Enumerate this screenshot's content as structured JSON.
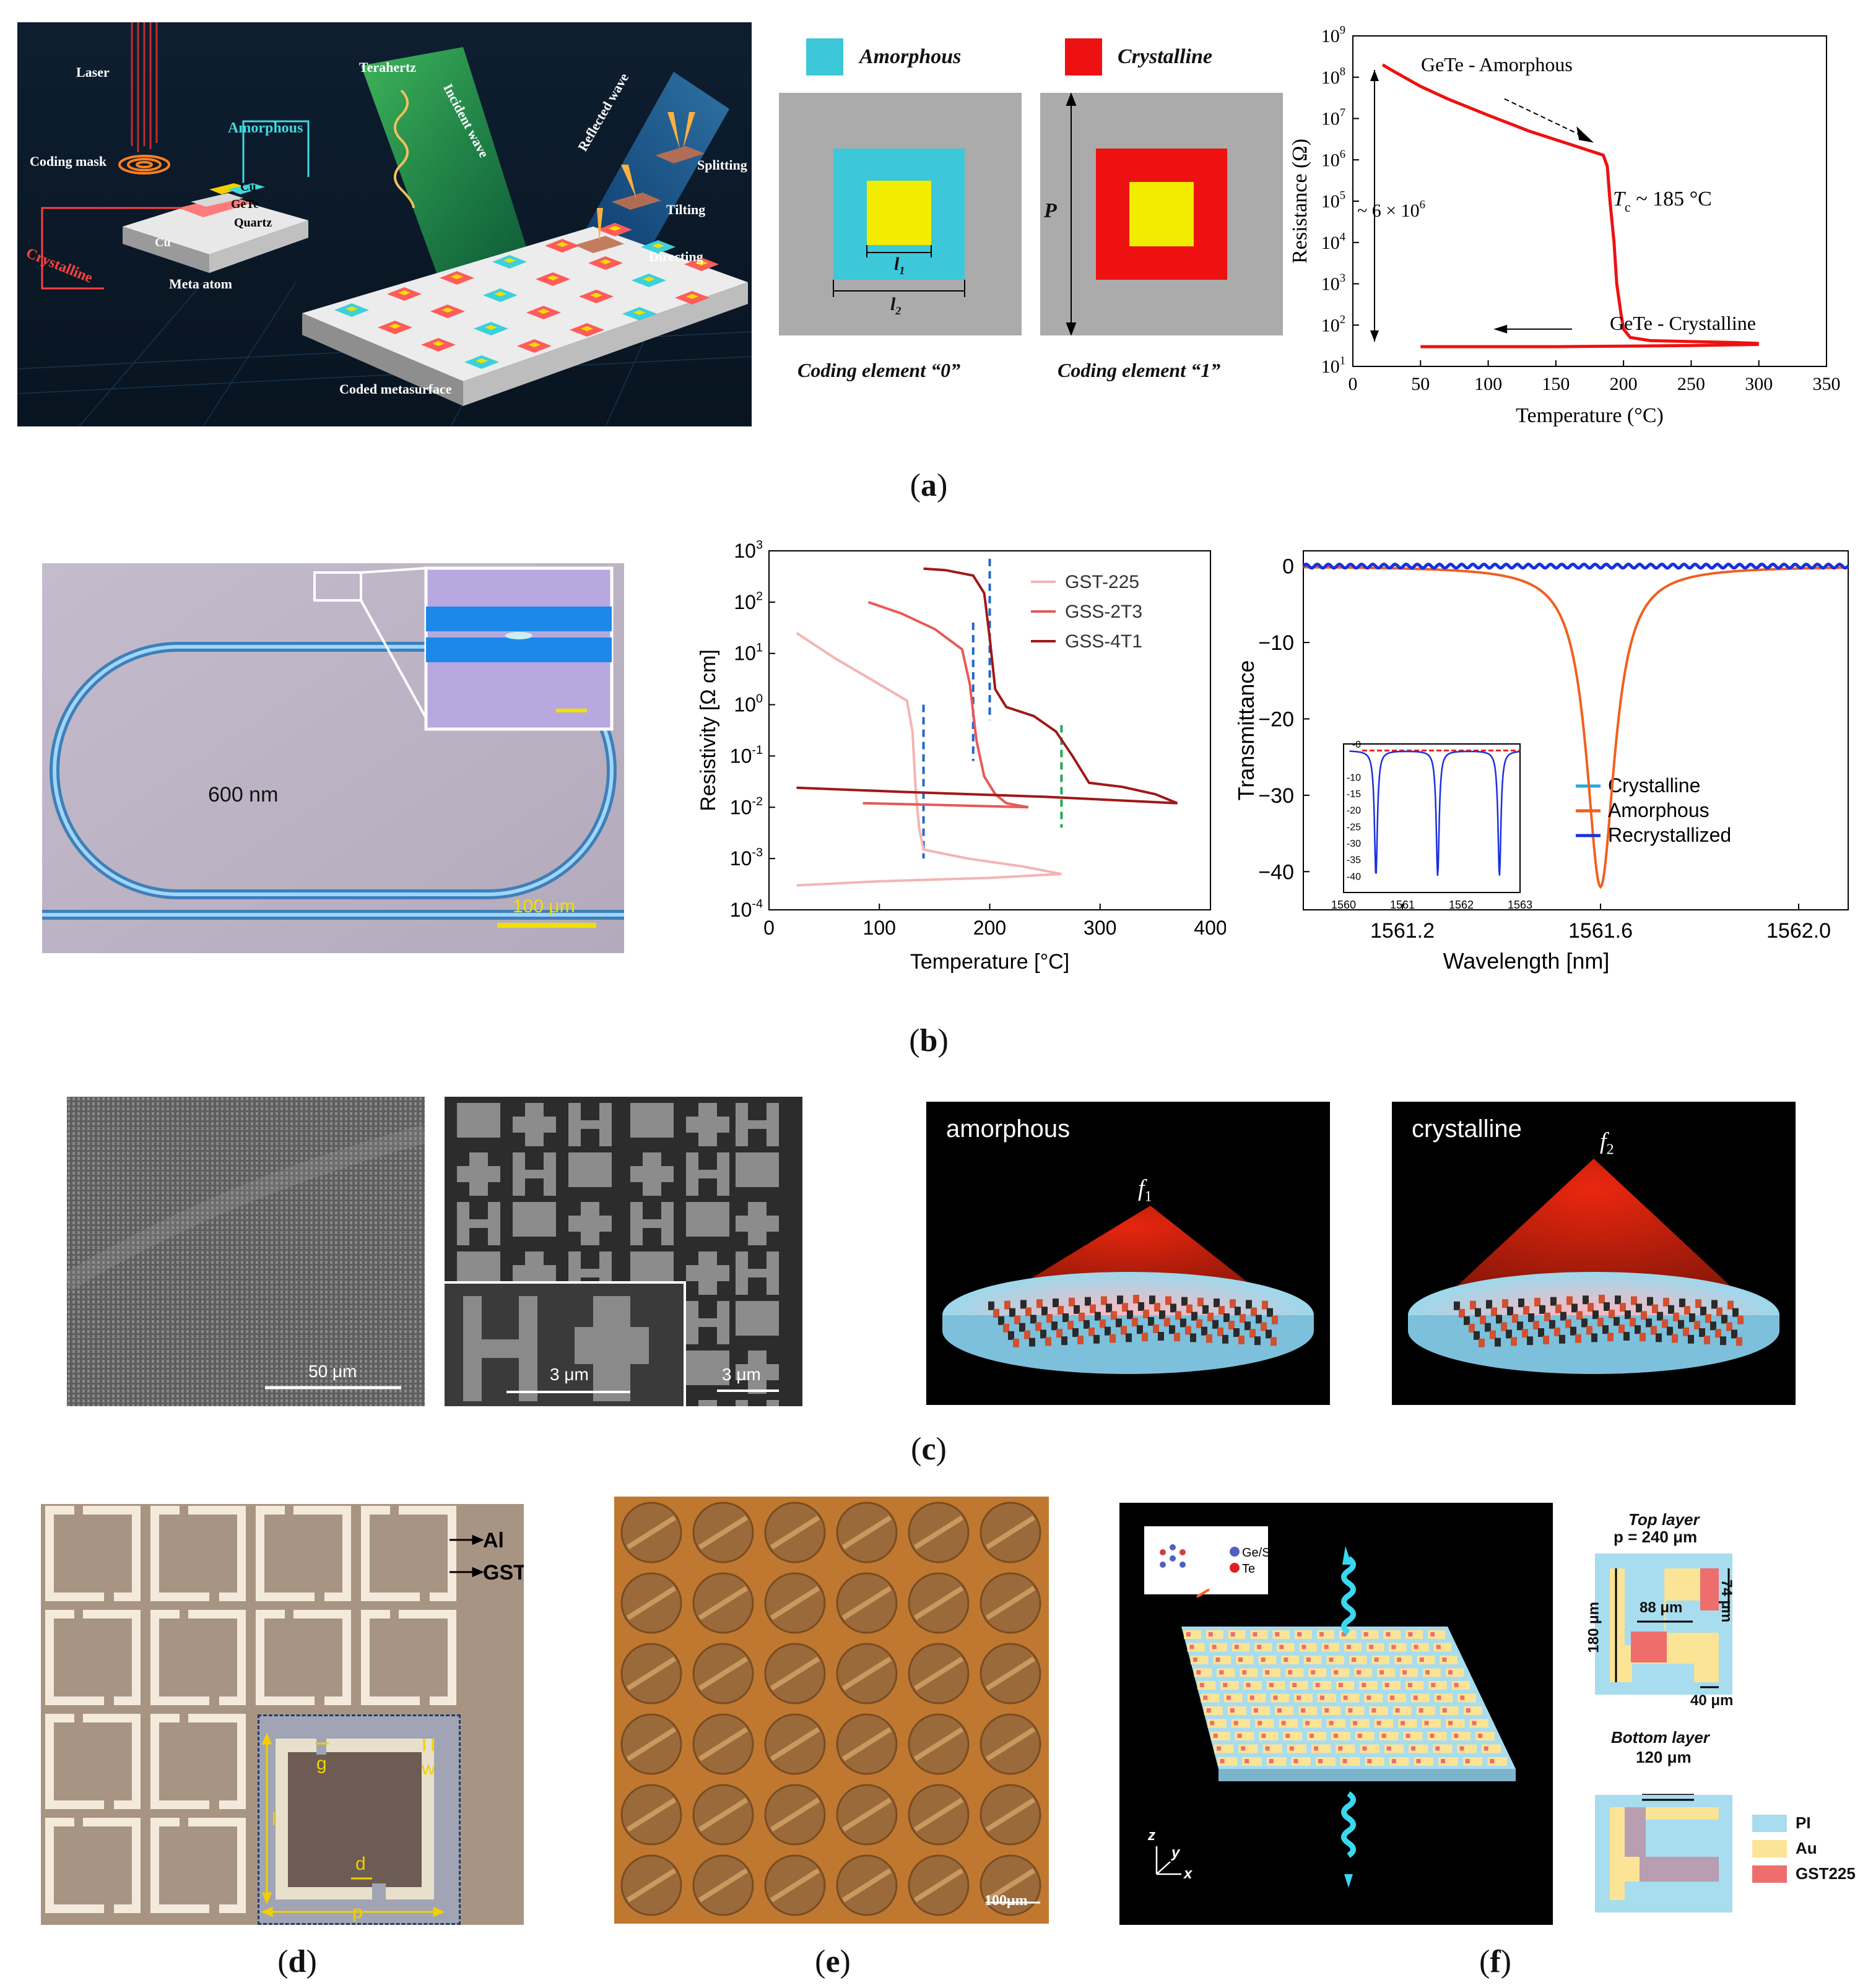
{
  "captions": {
    "a": "a",
    "b": "b",
    "c": "c",
    "d": "d",
    "e": "e",
    "f": "f"
  },
  "a1": {
    "laser": "Laser",
    "coding_mask": "Coding mask",
    "amorphous": "Amorphous",
    "crystalline": "Crystalline",
    "cu_top": "Cu",
    "gete": "GeTe",
    "quartz": "Quartz",
    "cu_left": "Cu",
    "meta_atom": "Meta atom",
    "terahertz": "Terahertz",
    "incident_wave": "Incident wave",
    "reflected_wave": "Reflected wave",
    "splitting": "Splitting",
    "tilting": "Tilting",
    "directing": "Directing",
    "coded_metasurface": "Coded metasurface"
  },
  "a2": {
    "legend_amorphous": "Amorphous",
    "legend_crystalline": "Crystalline",
    "l1": "l",
    "l1_sub": "1",
    "l2": "l",
    "l2_sub": "2",
    "p": "P",
    "coding0": "Coding element  “0”",
    "coding1": "Coding element  “1”",
    "colors": {
      "gray": "#ababab",
      "cyan": "#3cc8d8",
      "red": "#ee1111",
      "yellow": "#f1ec00"
    }
  },
  "chart_a3": {
    "type": "line",
    "ylabel": "Resistance (Ω)",
    "xlabel": "Temperature (°C)",
    "xlim": [
      0,
      350
    ],
    "ylim_log10": [
      1,
      9
    ],
    "x_ticks": [
      "0",
      "50",
      "100",
      "150",
      "200",
      "250",
      "300",
      "350"
    ],
    "y_ticks": [
      "10",
      "10",
      "10",
      "10",
      "10",
      "10",
      "10",
      "10",
      "10"
    ],
    "y_exps": [
      "1",
      "2",
      "3",
      "4",
      "5",
      "6",
      "7",
      "8",
      "9"
    ],
    "annotations": {
      "amorphous": "GeTe - Amorphous",
      "crystalline": "GeTe - Crystalline",
      "tc": "T",
      "tc_sub": "c",
      "tc_val": " ~ 185 °C",
      "ratio": "~ 6 × 10",
      "ratio_exp": "6"
    },
    "series": [
      {
        "name": "heating",
        "x": [
          22,
          30,
          50,
          70,
          100,
          130,
          160,
          185,
          188,
          190,
          193,
          195,
          198,
          200,
          205,
          220,
          250,
          280,
          300
        ],
        "y": [
          200000000,
          140000000,
          60000000,
          30000000,
          12000000,
          5000000,
          2400000,
          1300000,
          700000,
          100000,
          10000,
          1000,
          200,
          80,
          50,
          42,
          40,
          38,
          36
        ]
      },
      {
        "name": "cooling",
        "x": [
          300,
          250,
          200,
          150,
          100,
          50
        ],
        "y": [
          34,
          32,
          31,
          30,
          30,
          30
        ]
      }
    ]
  },
  "b1": {
    "label": "600 nm",
    "scale": "100 μm"
  },
  "chart_b2": {
    "type": "line",
    "ylabel": "Resistivity [Ω cm]",
    "xlabel": "Temperature [°C]",
    "xlim": [
      0,
      400
    ],
    "ylim_log10": [
      -4,
      3
    ],
    "x_ticks": [
      "0",
      "100",
      "200",
      "300",
      "400"
    ],
    "y_ticks": [
      "10",
      "10",
      "10",
      "10",
      "10",
      "10",
      "10",
      "10"
    ],
    "y_exps": [
      "-4",
      "-3",
      "-2",
      "-1",
      "0",
      "1",
      "2",
      "3"
    ],
    "colors": [
      "#f4b4b4",
      "#e85858",
      "#a01818"
    ],
    "series": [
      {
        "name": "GST-225",
        "heat_x": [
          25,
          60,
          100,
          125,
          130,
          133,
          136,
          140,
          180,
          230,
          265
        ],
        "heat_y": [
          25,
          8,
          2.5,
          1.2,
          0.3,
          0.02,
          0.004,
          0.0015,
          0.001,
          0.0007,
          0.0005
        ],
        "cool_x": [
          265,
          200,
          100,
          25
        ],
        "cool_y": [
          0.0005,
          0.00042,
          0.00036,
          0.0003
        ]
      },
      {
        "name": "GSS-2T3",
        "heat_x": [
          90,
          120,
          150,
          175,
          182,
          188,
          195,
          205,
          215,
          235
        ],
        "heat_y": [
          100,
          60,
          30,
          12,
          2.5,
          0.2,
          0.04,
          0.018,
          0.012,
          0.01
        ],
        "cool_x": [
          235,
          160,
          85
        ],
        "cool_y": [
          0.01,
          0.011,
          0.012
        ]
      },
      {
        "name": "GSS-4T1",
        "heat_x": [
          140,
          160,
          185,
          195,
          200,
          205,
          215,
          240,
          260,
          275,
          290,
          320,
          350,
          370
        ],
        "heat_y": [
          450,
          420,
          330,
          150,
          20,
          2,
          0.9,
          0.6,
          0.3,
          0.1,
          0.03,
          0.025,
          0.018,
          0.012
        ],
        "cool_x": [
          370,
          250,
          120,
          25
        ],
        "cool_y": [
          0.012,
          0.016,
          0.02,
          0.024
        ]
      }
    ],
    "vlines": [
      {
        "x": 140,
        "y_top": 1,
        "y_bottom": 0.001,
        "color": "#2266cc"
      },
      {
        "x": 185,
        "y_top": 40,
        "y_bottom": 0.08,
        "color": "#2266cc"
      },
      {
        "x": 200,
        "y_top": 700,
        "y_bottom": 0.5,
        "color": "#2266cc"
      },
      {
        "x": 265,
        "y_top": 0.4,
        "y_bottom": 0.004,
        "color": "#22aa55"
      }
    ]
  },
  "chart_b3": {
    "type": "line",
    "ylabel": "Transmittance",
    "xlabel": "Wavelength [nm]",
    "xlim": [
      1561.0,
      1562.1
    ],
    "ylim": [
      -45,
      2
    ],
    "x_ticks": [
      1561.2,
      1561.6,
      1562.0
    ],
    "x_tick_labels": [
      "1561.2",
      "1561.6",
      "1562.0"
    ],
    "y_ticks": [
      0,
      -10,
      -20,
      -30,
      -40
    ],
    "y_tick_labels": [
      "0",
      "−10",
      "−20",
      "−30",
      "−40"
    ],
    "series": [
      {
        "name": "Crystalline",
        "color": "#22aadd",
        "dip_center": 1561.6,
        "dip_depth": 0
      },
      {
        "name": "Amorphous",
        "color": "#f06020",
        "dip_center": 1561.6,
        "dip_depth": -42
      },
      {
        "name": "Recrystallized",
        "color": "#1a30dd",
        "dip_center": 1561.6,
        "dip_depth": 0
      }
    ],
    "inset": {
      "xlim": [
        1560,
        1563
      ],
      "ylim": [
        -45,
        0
      ],
      "x_ticks": [
        "1560",
        "1561",
        "1562",
        "1563"
      ],
      "y_ticks": [
        "-0",
        "-10",
        "-15",
        "-20",
        "-25",
        "-30",
        "-35",
        "-40"
      ],
      "dips": [
        1560.55,
        1561.6,
        1562.65
      ]
    }
  },
  "c1": {
    "scale_left": "50 μm",
    "scale_inset": "3 μm",
    "scale_right": "3 μm"
  },
  "c2": {
    "amorphous": "amorphous",
    "crystalline": "crystalline",
    "f1": "f",
    "f1_sub": "1",
    "f2": "f",
    "f2_sub": "2"
  },
  "d": {
    "al": "Al",
    "gst": "GST",
    "g": "g",
    "w": "w",
    "l": "l",
    "d": "d",
    "p": "p"
  },
  "e": {
    "scale": "100μm"
  },
  "f": {
    "gesb": "Ge/Sb",
    "te": "Te",
    "axis_z": "z",
    "axis_y": "y",
    "axis_x": "x",
    "top_layer": "Top layer",
    "period": "p = 240 μm",
    "d88": "88 μm",
    "d74": "74 μm",
    "d180": "180 μm",
    "d40": "40 μm",
    "bottom_layer": "Bottom layer",
    "d120": "120 μm",
    "legend": [
      {
        "label": "PI",
        "color": "#a8dcef"
      },
      {
        "label": "Au",
        "color": "#fbe496"
      },
      {
        "label": "GST225",
        "color": "#ee6e6e"
      }
    ]
  }
}
